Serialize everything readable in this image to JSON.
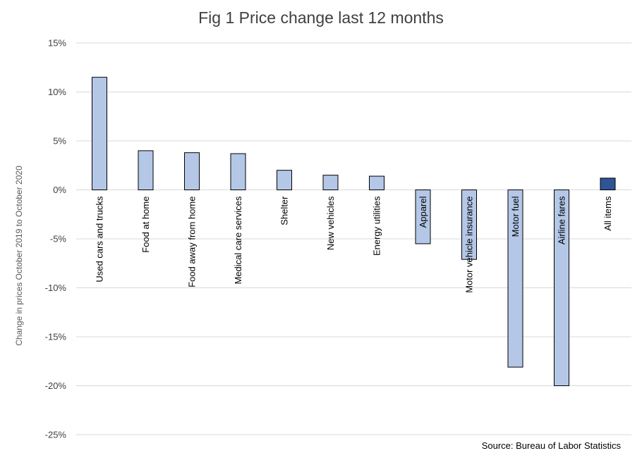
{
  "chart_data": {
    "type": "bar",
    "title": "Fig 1 Price change last 12 months",
    "ylabel": "Change in prices October 2019 to October 2020",
    "xlabel": "",
    "source": "Source: Bureau of Labor Statistics",
    "ylim": [
      -25,
      15
    ],
    "yticks": [
      15,
      10,
      5,
      0,
      -5,
      -10,
      -15,
      -20,
      -25
    ],
    "ytick_labels": [
      "15%",
      "10%",
      "5%",
      "0%",
      "-5%",
      "-10%",
      "-15%",
      "-20%",
      "-25%"
    ],
    "grid": true,
    "categories": [
      "Used cars and trucks",
      "Food at home",
      "Food away from home",
      "Medical care services",
      "Shelter",
      "New vehicles",
      "Energy utilities",
      "Apparel",
      "Motor vehicle insurance",
      "Motor fuel",
      "Airline fares",
      "All items"
    ],
    "values": [
      11.5,
      4.0,
      3.8,
      3.7,
      2.0,
      1.5,
      1.4,
      -5.5,
      -7.1,
      -18.1,
      -20.0,
      1.2
    ],
    "colors": {
      "bar": "#b4c7e7",
      "highlight": "#2f5597",
      "outline": "#000000",
      "grid": "#d9d9d9"
    },
    "highlight_category": "All items"
  }
}
